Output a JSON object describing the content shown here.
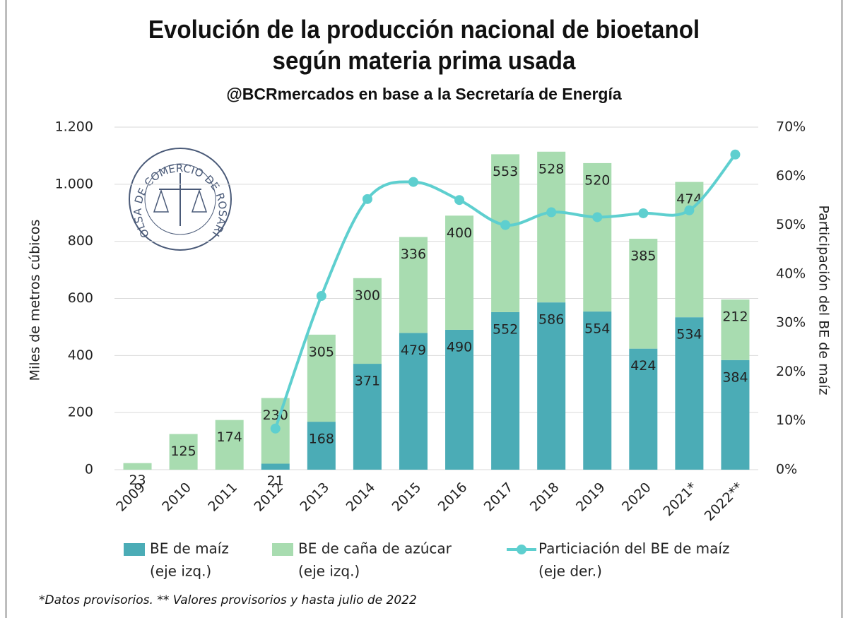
{
  "chart_data": {
    "type": "bar",
    "title": "Evolución de la producción nacional de bioetanol según materia prima usada",
    "subtitle": "@BCRmercados en base a la Secretaría de Energía",
    "logo_text": "BOLSA DE COMERCIO DE ROSARIO",
    "y_label": "Miles de metros cúbicos",
    "y2_label": "Participación del BE de maíz",
    "footnote": "*Datos provisorios. ** Valores provisorios y hasta julio de 2022",
    "categories": [
      "2009",
      "2010",
      "2011",
      "2012",
      "2013",
      "2014",
      "2015",
      "2016",
      "2017",
      "2018",
      "2019",
      "2020",
      "2021*",
      "2022**"
    ],
    "series": [
      {
        "name": "BE de maíz",
        "note": "(eje izq.)",
        "type": "bar",
        "color": "#4bacb6",
        "values": [
          null,
          null,
          null,
          21,
          168,
          371,
          479,
          490,
          552,
          586,
          554,
          424,
          534,
          384
        ]
      },
      {
        "name": "BE de caña de azúcar",
        "note": "(eje izq.)",
        "type": "bar",
        "color": "#a8dcb0",
        "values": [
          23,
          125,
          174,
          230,
          305,
          300,
          336,
          400,
          553,
          528,
          520,
          385,
          474,
          212
        ]
      },
      {
        "name": "Particiación del BE de maíz",
        "note": "(eje der.)",
        "type": "line",
        "axis": "y2",
        "color": "#5ecfcf",
        "values": [
          null,
          null,
          null,
          8.4,
          35.5,
          55.3,
          58.8,
          55.1,
          50,
          52.6,
          51.6,
          52.4,
          53,
          64.4
        ]
      }
    ],
    "stacked": true,
    "ylim": [
      0,
      1200
    ],
    "yticks": [
      0,
      200,
      400,
      600,
      800,
      {
        "value": 1000,
        "label": "1.000"
      },
      {
        "value": 1200,
        "label": "1.200"
      }
    ],
    "y2lim": [
      0,
      70
    ],
    "y2ticks": [
      {
        "value": 0,
        "label": "0%"
      },
      {
        "value": 10,
        "label": "10%"
      },
      {
        "value": 20,
        "label": "20%"
      },
      {
        "value": 30,
        "label": "30%"
      },
      {
        "value": 40,
        "label": "40%"
      },
      {
        "value": 50,
        "label": "50%"
      },
      {
        "value": 60,
        "label": "60%"
      },
      {
        "value": 70,
        "label": "70%"
      }
    ],
    "grid": true
  }
}
